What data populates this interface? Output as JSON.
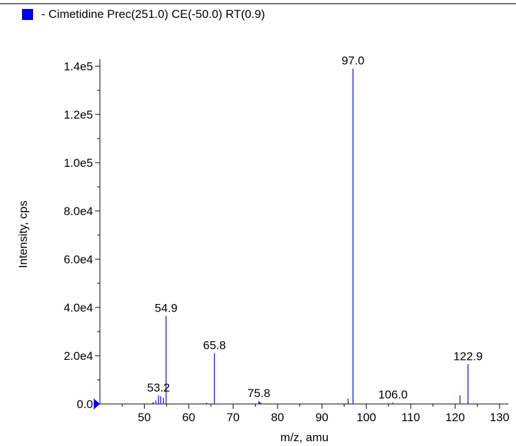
{
  "legend": {
    "label": "- Cimetidine Prec(251.0) CE(-50.0) RT(0.9)",
    "color": "#0000ff"
  },
  "chart_data": {
    "type": "bar",
    "subtype": "mass-spectrum-stick",
    "xlabel": "m/z, amu",
    "ylabel": "Intensity, cps",
    "xlim": [
      40,
      132
    ],
    "ylim": [
      0,
      140000
    ],
    "xticks": [
      50,
      60,
      70,
      80,
      90,
      100,
      110,
      120,
      130
    ],
    "yticks": [
      {
        "value": 0,
        "label": "0.0"
      },
      {
        "value": 20000,
        "label": "2.0e4"
      },
      {
        "value": 40000,
        "label": "4.0e4"
      },
      {
        "value": 60000,
        "label": "6.0e4"
      },
      {
        "value": 80000,
        "label": "8.0e4"
      },
      {
        "value": 100000,
        "label": "1.0e5"
      },
      {
        "value": 120000,
        "label": "1.2e5"
      },
      {
        "value": 140000,
        "label": "1.4e5"
      }
    ],
    "series": [
      {
        "name": "Cimetidine Prec(251.0) CE(-50.0) RT(0.9)",
        "color": "#0000ff",
        "peaks": [
          {
            "mz": 52.0,
            "intensity": 800
          },
          {
            "mz": 52.6,
            "intensity": 1500
          },
          {
            "mz": 53.2,
            "intensity": 3500,
            "label": "53.2"
          },
          {
            "mz": 53.7,
            "intensity": 3200
          },
          {
            "mz": 54.3,
            "intensity": 2500
          },
          {
            "mz": 54.9,
            "intensity": 36500,
            "label": "54.9"
          },
          {
            "mz": 64.0,
            "intensity": 500
          },
          {
            "mz": 65.8,
            "intensity": 21000,
            "label": "65.8"
          },
          {
            "mz": 75.8,
            "intensity": 1200,
            "label": "75.8"
          },
          {
            "mz": 76.0,
            "intensity": 800
          },
          {
            "mz": 76.3,
            "intensity": 500
          },
          {
            "mz": 95.9,
            "intensity": 2200
          },
          {
            "mz": 97.0,
            "intensity": 139000,
            "label": "97.0"
          },
          {
            "mz": 106.0,
            "intensity": 600,
            "label": "106.0"
          },
          {
            "mz": 121.1,
            "intensity": 3500
          },
          {
            "mz": 122.9,
            "intensity": 16500,
            "label": "122.9"
          }
        ]
      }
    ],
    "marker": {
      "shape": "triangle",
      "color": "#0000ff",
      "at_y": 0
    }
  }
}
